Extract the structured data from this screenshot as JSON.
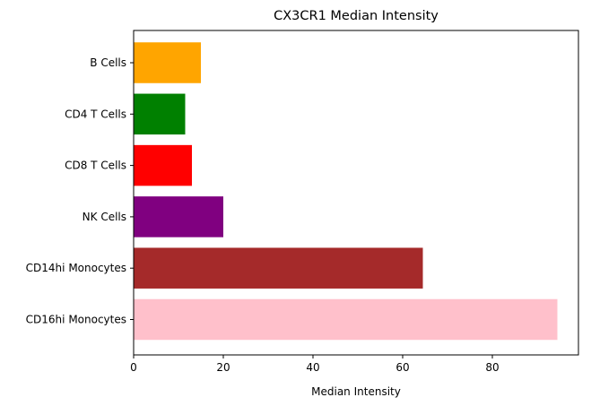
{
  "chart_data": {
    "type": "bar",
    "orientation": "horizontal",
    "title": "CX3CR1 Median Intensity",
    "xlabel": "Median Intensity",
    "ylabel": "",
    "categories": [
      "B Cells",
      "CD4 T Cells",
      "CD8 T Cells",
      "NK Cells",
      "CD14hi Monocytes",
      "CD16hi Monocytes"
    ],
    "values": [
      15.0,
      11.5,
      13.0,
      20.0,
      64.5,
      94.5
    ],
    "colors": [
      "#ffa500",
      "#008000",
      "#ff0000",
      "#800080",
      "#a52a2a",
      "#ffc0cb"
    ],
    "xlim": [
      0,
      99.2
    ],
    "xticks": [
      0,
      20,
      40,
      60,
      80
    ],
    "xtick_labels": [
      "0",
      "20",
      "40",
      "60",
      "80"
    ],
    "grid": false,
    "legend": "none"
  }
}
